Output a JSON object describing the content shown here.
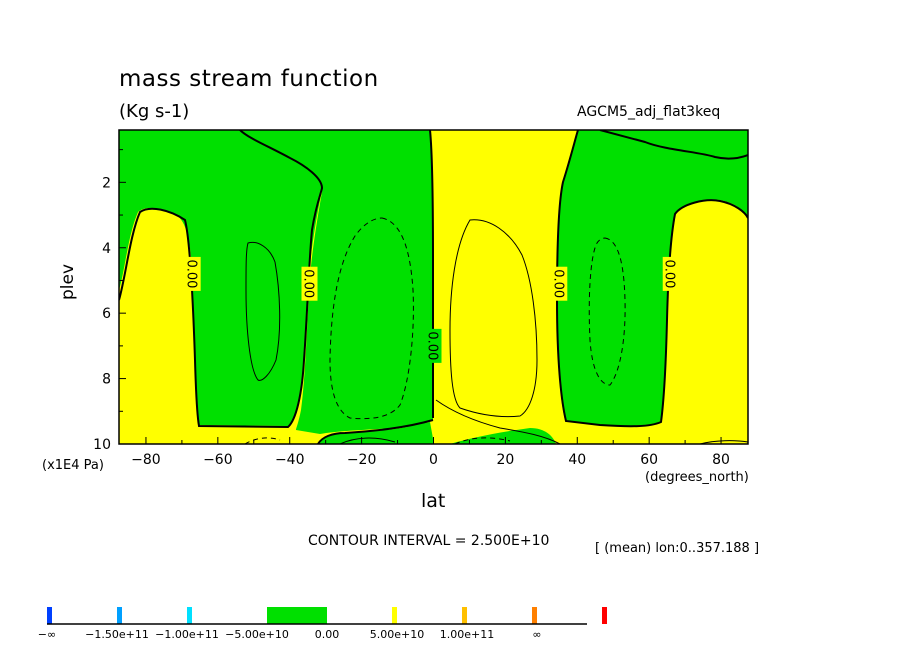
{
  "header": {
    "title": "mass stream function",
    "units": "(Kg s-1)",
    "dataset": "AGCM5_adj_flat3keq"
  },
  "footer": {
    "contour_interval": "CONTOUR INTERVAL = 2.500E+10",
    "mean_note": "[ (mean) lon:0..357.188 ]"
  },
  "chart_data": {
    "type": "heatmap",
    "subtype": "filled contour",
    "title": "mass stream function",
    "units": "(Kg s-1)",
    "xlabel": "lat",
    "xunits": "(degrees_north)",
    "ylabel": "plev",
    "yunits": "(x1E4 Pa)",
    "xlim": [
      -87.5,
      87.5
    ],
    "ylim": [
      10,
      0.4
    ],
    "x_ticks": [
      -80,
      -60,
      -40,
      -20,
      0,
      20,
      40,
      60,
      80
    ],
    "x_tick_labels": [
      "−80",
      "−60",
      "−40",
      "−20",
      "0",
      "20",
      "40",
      "60",
      "80"
    ],
    "y_ticks": [
      2,
      4,
      6,
      8,
      10
    ],
    "y_tick_labels": [
      "2",
      "4",
      "6",
      "8",
      "10"
    ],
    "contour_labels": [
      {
        "text": "0.00",
        "lat": -67,
        "plev": 4.8
      },
      {
        "text": "0.00",
        "lat": -34.5,
        "plev": 5.1
      },
      {
        "text": "0.00",
        "lat": 0,
        "plev": 7.0
      },
      {
        "text": "0.00",
        "lat": 35,
        "plev": 5.1
      },
      {
        "text": "0.00",
        "lat": 66,
        "plev": 4.8
      }
    ],
    "zero_line_lats": [
      -72,
      -36,
      0,
      35,
      65
    ],
    "colors": {
      "negative_small": "#00e000",
      "positive_small": "#ffff00",
      "line": "#000000"
    },
    "colorbar": {
      "labels": [
        "−∞",
        "−1.50e+11",
        "−1.00e+11",
        "−5.00e+10",
        "0.00",
        "5.00e+10",
        "1.00e+11",
        "∞"
      ],
      "segments": [
        {
          "from": "-inf",
          "to": -150000000000.0,
          "color": "#0040ff"
        },
        {
          "from": -150000000000.0,
          "to": -100000000000.0,
          "color": "#00a0ff"
        },
        {
          "from": -100000000000.0,
          "to": -50000000000.0,
          "color": "#00e0ff"
        },
        {
          "from": -50000000000.0,
          "to": 0,
          "color": "#00e000"
        },
        {
          "from": 0,
          "to": 50000000000.0,
          "color": "#ffff00"
        },
        {
          "from": 50000000000.0,
          "to": 100000000000.0,
          "color": "#ffc000"
        },
        {
          "from": 100000000000.0,
          "to": 150000000000.0,
          "color": "#ff8000"
        },
        {
          "from": 150000000000.0,
          "to": "inf",
          "color": "#ff0000"
        }
      ]
    }
  }
}
